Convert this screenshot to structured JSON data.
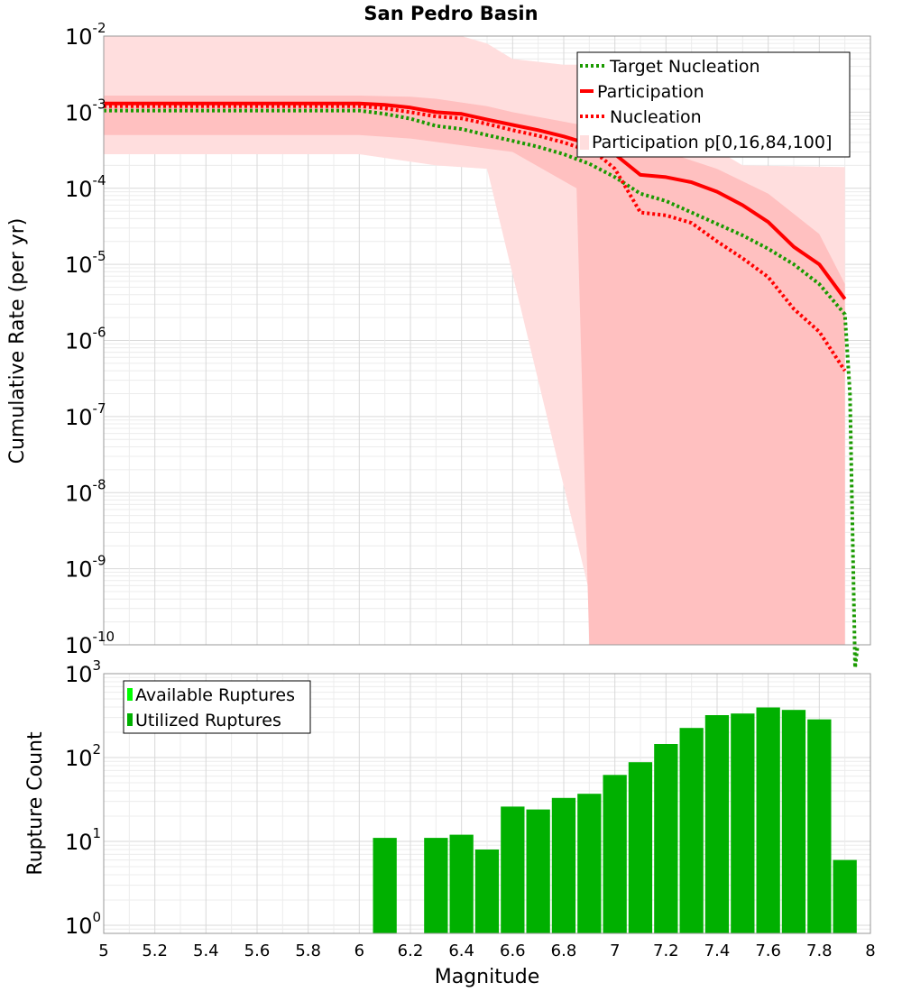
{
  "chart_data": [
    {
      "type": "line",
      "title": "San Pedro Basin",
      "xlabel": "",
      "ylabel": "Cumulative Rate (per yr)",
      "xlim": [
        5,
        8
      ],
      "y_scale": "log",
      "ylim": [
        1e-10,
        0.01
      ],
      "y_tick_exponents": [
        "-10",
        "-9",
        "-8",
        "-7",
        "-6",
        "-5",
        "-4",
        "-3",
        "-2"
      ],
      "grid": true,
      "legend_placement": "top-right",
      "legend": [
        "Target Nucleation",
        "Participation",
        "Nucleation",
        "Participation p[0,16,84,100]"
      ],
      "colors": {
        "target": "#1a9a00",
        "participation": "#ff0000",
        "nucleation": "#ff0000",
        "band_outer": "#ffdede",
        "band_inner": "#ffc0c0"
      },
      "series": [
        {
          "name": "Target Nucleation",
          "style": "dotted",
          "x": [
            5.0,
            5.5,
            6.0,
            6.1,
            6.2,
            6.3,
            6.4,
            6.5,
            6.6,
            6.7,
            6.8,
            6.9,
            7.0,
            7.1,
            7.2,
            7.3,
            7.4,
            7.5,
            7.6,
            7.7,
            7.8,
            7.9,
            7.92,
            7.94,
            7.95
          ],
          "y": [
            0.00105,
            0.00105,
            0.00105,
            0.00095,
            0.00082,
            0.00066,
            0.0006,
            0.0005,
            0.00042,
            0.00035,
            0.00028,
            0.00021,
            0.00014,
            8.5e-05,
            6.8e-05,
            4.8e-05,
            3.4e-05,
            2.4e-05,
            1.6e-05,
            1e-05,
            5.5e-06,
            2.2e-06,
            2e-07,
            5e-11,
            1e-10
          ]
        },
        {
          "name": "Participation",
          "style": "solid",
          "x": [
            5.0,
            5.5,
            6.0,
            6.1,
            6.2,
            6.3,
            6.4,
            6.5,
            6.6,
            6.7,
            6.8,
            6.9,
            7.0,
            7.1,
            7.2,
            7.3,
            7.4,
            7.5,
            7.6,
            7.7,
            7.8,
            7.9
          ],
          "y": [
            0.0013,
            0.0013,
            0.0013,
            0.00125,
            0.00115,
            0.001,
            0.00095,
            0.0008,
            0.00068,
            0.00058,
            0.00048,
            0.00038,
            0.00028,
            0.00015,
            0.00014,
            0.00012,
            9e-05,
            6e-05,
            3.6e-05,
            1.7e-05,
            1e-05,
            3.5e-06
          ]
        },
        {
          "name": "Nucleation",
          "style": "dotted",
          "x": [
            5.0,
            5.5,
            6.0,
            6.1,
            6.2,
            6.3,
            6.4,
            6.5,
            6.6,
            6.7,
            6.8,
            6.9,
            6.95,
            7.0,
            7.1,
            7.2,
            7.3,
            7.4,
            7.5,
            7.6,
            7.7,
            7.8,
            7.9
          ],
          "y": [
            0.0012,
            0.0012,
            0.0012,
            0.00112,
            0.001,
            0.00088,
            0.00083,
            0.0007,
            0.00058,
            0.00049,
            0.0004,
            0.00031,
            0.00025,
            0.00018,
            4.8e-05,
            4.4e-05,
            3.5e-05,
            2e-05,
            1.2e-05,
            6.8e-06,
            2.6e-06,
            1.3e-06,
            4e-07
          ]
        }
      ],
      "band_outer": {
        "upper_x": [
          5.0,
          6.0,
          6.2,
          6.3,
          6.4,
          6.5,
          6.6,
          6.8,
          6.9,
          7.0,
          7.5,
          7.9
        ],
        "upper_y": [
          0.01,
          0.01,
          0.01,
          0.01,
          0.01,
          0.008,
          0.005,
          0.0042,
          0.0042,
          0.002,
          0.0002,
          0.00019
        ],
        "lower_x": [
          7.9,
          7.6,
          7.3,
          7.1,
          7.05,
          6.95,
          6.5,
          6.3,
          6.0,
          5.0
        ],
        "lower_y": [
          1e-10,
          1e-10,
          1e-10,
          1e-10,
          1e-10,
          1e-10,
          0.00018,
          0.0002,
          0.00028,
          0.00028
        ]
      },
      "band_inner": {
        "upper_x": [
          5.0,
          6.0,
          6.2,
          6.3,
          6.5,
          6.6,
          6.8,
          6.9,
          7.0,
          7.1,
          7.2,
          7.4,
          7.6,
          7.8,
          7.9
        ],
        "upper_y": [
          0.00165,
          0.00165,
          0.0016,
          0.0015,
          0.0012,
          0.001,
          0.00075,
          0.00065,
          0.00045,
          0.00035,
          0.0003,
          0.00018,
          8.5e-05,
          2.5e-05,
          5.5e-06
        ],
        "lower_x": [
          7.9,
          7.0,
          6.9,
          6.85,
          6.6,
          6.2,
          6.0,
          5.0
        ],
        "lower_y": [
          1e-10,
          1e-10,
          1e-10,
          0.0001,
          0.0003,
          0.00045,
          0.0005,
          0.0005
        ]
      }
    },
    {
      "type": "bar",
      "title": "",
      "xlabel": "Magnitude",
      "ylabel": "Rupture Count",
      "xlim": [
        5,
        8
      ],
      "x_ticks": [
        "5",
        "5.2",
        "5.4",
        "5.6",
        "5.8",
        "6",
        "6.2",
        "6.4",
        "6.6",
        "6.8",
        "7",
        "7.2",
        "7.4",
        "7.6",
        "7.8",
        "8"
      ],
      "y_scale": "log",
      "ylim": [
        0.8,
        1000
      ],
      "y_tick_exponents": [
        "0",
        "1",
        "2",
        "3"
      ],
      "grid": true,
      "legend_placement": "top-left",
      "legend": [
        "Available Ruptures",
        "Utilized Ruptures"
      ],
      "colors": {
        "available": "#00ff00",
        "utilized": "#00b000"
      },
      "bar_width": 0.1,
      "series": [
        {
          "name": "Utilized Ruptures",
          "x": [
            6.1,
            6.3,
            6.4,
            6.5,
            6.6,
            6.7,
            6.8,
            6.9,
            7.0,
            7.1,
            7.2,
            7.3,
            7.4,
            7.5,
            7.6,
            7.7,
            7.8,
            7.9
          ],
          "values": [
            11,
            11,
            12,
            8,
            26,
            24,
            33,
            37,
            62,
            88,
            145,
            225,
            320,
            335,
            395,
            370,
            285,
            6
          ]
        }
      ]
    }
  ]
}
